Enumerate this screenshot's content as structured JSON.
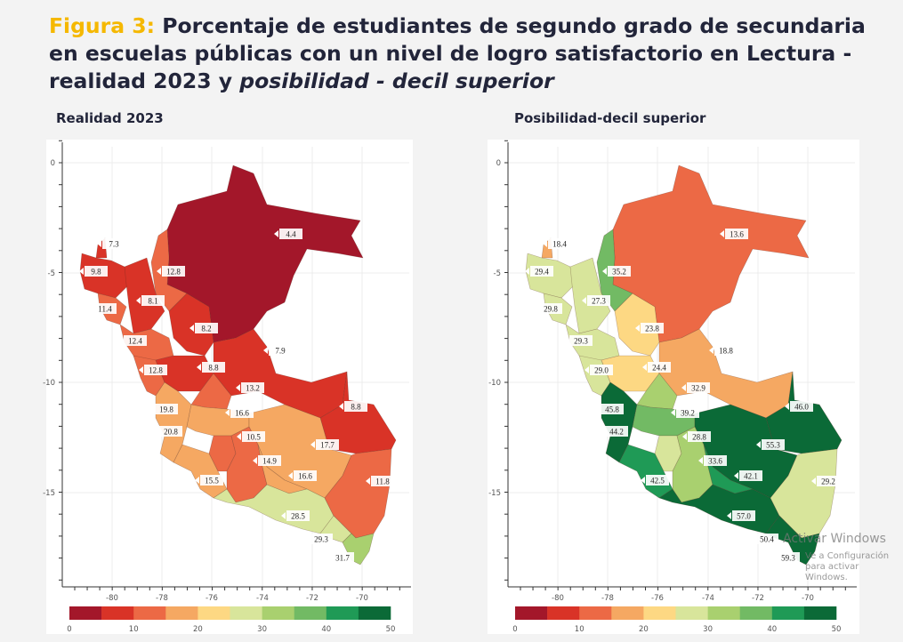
{
  "title": {
    "figure_label": "Figura 3:",
    "text": " Porcentaje de estudiantes de segundo grado de secundaria en escuelas públicas con un nivel de logro satisfactorio en Lectura - realidad 2023 y ",
    "italic_text": "posibilidad - decil superior"
  },
  "maps": [
    {
      "title": "Realidad 2023",
      "values": [
        "4.4",
        "12.8",
        "7.3",
        "9.8",
        "11.4",
        "8.1",
        "8.2",
        "12.4",
        "12.8",
        "8.8",
        "7.9",
        "13.2",
        "19.8",
        "16.6",
        "8.8",
        "17.7",
        "10.5",
        "14.9",
        "16.6",
        "15.5",
        "28.5",
        "11.8",
        "29.3",
        "31.7",
        "20.8"
      ]
    },
    {
      "title": "Posibilidad-decil superior",
      "values": [
        "13.6",
        "35.2",
        "18.4",
        "29.4",
        "29.8",
        "27.3",
        "23.8",
        "29.3",
        "29.0",
        "24.4",
        "18.8",
        "32.9",
        "45.8",
        "39.2",
        "46.0",
        "55.3",
        "28.8",
        "33.6",
        "42.1",
        "42.5",
        "57.0",
        "29.2",
        "50.4",
        "59.3",
        "44.2"
      ]
    }
  ],
  "axes": {
    "x_ticks": [
      "-80",
      "-78",
      "-76",
      "-74",
      "-72",
      "-70"
    ],
    "y_ticks": [
      "0",
      "-5",
      "-10",
      "-15"
    ]
  },
  "colorbar": {
    "ticks": [
      "0",
      "10",
      "20",
      "30",
      "40",
      "50"
    ],
    "colors": [
      "#a3172a",
      "#d93327",
      "#ec6945",
      "#f5a862",
      "#fdd883",
      "#d8e59b",
      "#a9d06f",
      "#72ba64",
      "#1f9a56",
      "#0b6a37"
    ],
    "bin_width": 5
  },
  "watermark": {
    "line1": "Activar Windows",
    "line2": "Ve a Configuración para activar Windows."
  }
}
